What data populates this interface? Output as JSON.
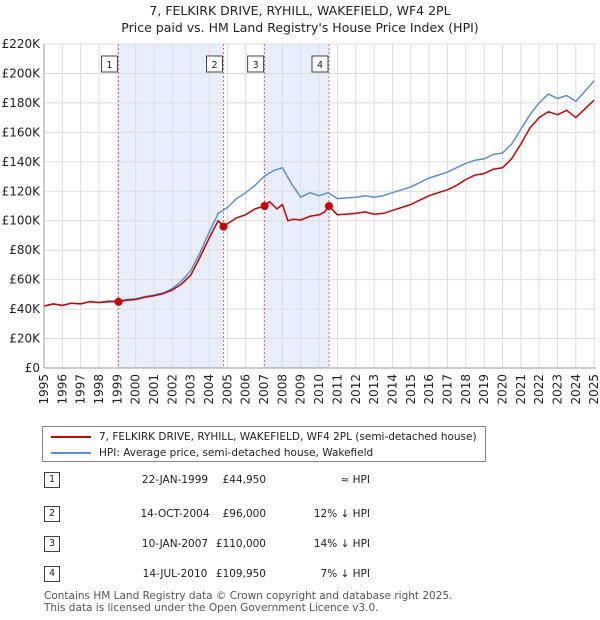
{
  "title": {
    "line1": "7, FELKIRK DRIVE, RYHILL, WAKEFIELD, WF4 2PL",
    "line2": "Price paid vs. HM Land Registry's House Price Index (HPI)"
  },
  "colors": {
    "property": "#cc0000",
    "hpi": "#5b8fd4",
    "shade": "#e8eefb",
    "grid": "#dddddd",
    "vline": "#e06666"
  },
  "legend": {
    "property_label": "7, FELKIRK DRIVE, RYHILL, WAKEFIELD, WF4 2PL (semi-detached house)",
    "hpi_label": "HPI: Average price, semi-detached house, Wakefield"
  },
  "sales": [
    {
      "id": "1",
      "date": "22-JAN-1999",
      "price": "£44,950",
      "hpi_note": "≈ HPI"
    },
    {
      "id": "2",
      "date": "14-OCT-2004",
      "price": "£96,000",
      "hpi_note": "12% ↓ HPI"
    },
    {
      "id": "3",
      "date": "10-JAN-2007",
      "price": "£110,000",
      "hpi_note": "14% ↓ HPI"
    },
    {
      "id": "4",
      "date": "14-JUL-2010",
      "price": "£109,950",
      "hpi_note": "7% ↓ HPI"
    }
  ],
  "footer": {
    "line1": "Contains HM Land Registry data © Crown copyright and database right 2025.",
    "line2": "This data is licensed under the Open Government Licence v3.0."
  },
  "chart_data": {
    "type": "line",
    "title": "Price paid vs. HM Land Registry's House Price Index (HPI)",
    "xlabel": "",
    "ylabel": "",
    "xlim": [
      1995,
      2025.1
    ],
    "ylim": [
      0,
      220000
    ],
    "x_ticks": [
      1995,
      1996,
      1997,
      1998,
      1999,
      2000,
      2001,
      2002,
      2003,
      2004,
      2005,
      2006,
      2007,
      2008,
      2009,
      2010,
      2011,
      2012,
      2013,
      2014,
      2015,
      2016,
      2017,
      2018,
      2019,
      2020,
      2021,
      2022,
      2023,
      2024,
      2025
    ],
    "y_ticks": [
      0,
      20000,
      40000,
      60000,
      80000,
      100000,
      120000,
      140000,
      160000,
      180000,
      200000,
      220000
    ],
    "y_tick_labels": [
      "£0",
      "£20K",
      "£40K",
      "£60K",
      "£80K",
      "£100K",
      "£120K",
      "£140K",
      "£160K",
      "£180K",
      "£200K",
      "£220K"
    ],
    "grid": true,
    "sale_points": [
      {
        "id": "1",
        "x": 1999.06,
        "y": 44950
      },
      {
        "id": "2",
        "x": 2004.79,
        "y": 96000
      },
      {
        "id": "3",
        "x": 2007.03,
        "y": 110000
      },
      {
        "id": "4",
        "x": 2010.54,
        "y": 109950
      }
    ],
    "shaded_ranges": [
      [
        1999.06,
        2004.79
      ],
      [
        2007.03,
        2010.54
      ]
    ],
    "series": [
      {
        "name": "7, FELKIRK DRIVE, RYHILL, WAKEFIELD, WF4 2PL (semi-detached house)",
        "x": [
          1995,
          1995.5,
          1996,
          1996.5,
          1997,
          1997.5,
          1998,
          1998.5,
          1999.06,
          1999.5,
          2000,
          2000.5,
          2001,
          2001.5,
          2002,
          2002.5,
          2003,
          2003.5,
          2004,
          2004.5,
          2004.79,
          2005,
          2005.5,
          2006,
          2006.5,
          2007.03,
          2007.3,
          2007.7,
          2008,
          2008.3,
          2008.6,
          2009,
          2009.5,
          2010,
          2010.3,
          2010.54,
          2011,
          2011.5,
          2012,
          2012.5,
          2013,
          2013.5,
          2014,
          2014.5,
          2015,
          2015.5,
          2016,
          2016.5,
          2017,
          2017.5,
          2018,
          2018.5,
          2019,
          2019.5,
          2020,
          2020.5,
          2021,
          2021.5,
          2022,
          2022.5,
          2023,
          2023.5,
          2024,
          2024.5,
          2025
        ],
        "values": [
          42000,
          43500,
          42500,
          44000,
          43500,
          45000,
          44500,
          45000,
          44950,
          46000,
          46500,
          48000,
          49000,
          50500,
          53000,
          57000,
          63000,
          75000,
          88000,
          100000,
          96000,
          98000,
          102000,
          104000,
          108000,
          110000,
          113000,
          108000,
          111000,
          100000,
          101000,
          100500,
          103000,
          104000,
          106000,
          109950,
          104000,
          104500,
          105000,
          106000,
          104500,
          105000,
          107000,
          109000,
          111000,
          114000,
          117000,
          119000,
          121000,
          124000,
          128000,
          131000,
          132000,
          135000,
          136000,
          142000,
          152000,
          163000,
          170000,
          174000,
          172000,
          175000,
          170000,
          176000,
          182000
        ]
      },
      {
        "name": "HPI: Average price, semi-detached house, Wakefield",
        "x": [
          1995,
          1995.5,
          1996,
          1996.5,
          1997,
          1997.5,
          1998,
          1998.5,
          1999,
          1999.5,
          2000,
          2000.5,
          2001,
          2001.5,
          2002,
          2002.5,
          2003,
          2003.5,
          2004,
          2004.5,
          2005,
          2005.5,
          2006,
          2006.5,
          2007,
          2007.5,
          2008,
          2008.5,
          2009,
          2009.5,
          2010,
          2010.5,
          2011,
          2011.5,
          2012,
          2012.5,
          2013,
          2013.5,
          2014,
          2014.5,
          2015,
          2015.5,
          2016,
          2016.5,
          2017,
          2017.5,
          2018,
          2018.5,
          2019,
          2019.5,
          2020,
          2020.5,
          2021,
          2021.5,
          2022,
          2022.5,
          2023,
          2023.5,
          2024,
          2024.5,
          2025
        ],
        "values": [
          42000,
          43500,
          42500,
          44000,
          43500,
          45000,
          44500,
          45500,
          45500,
          46500,
          47000,
          48500,
          49500,
          51000,
          54000,
          59000,
          66000,
          78000,
          92000,
          105000,
          109000,
          115000,
          119000,
          124000,
          130000,
          134000,
          136000,
          125000,
          116000,
          119000,
          117000,
          119000,
          115000,
          115500,
          116000,
          117000,
          116000,
          117000,
          119000,
          121000,
          123000,
          126000,
          129000,
          131000,
          133000,
          136000,
          139000,
          141000,
          142000,
          145000,
          146000,
          152000,
          162000,
          172000,
          180000,
          186000,
          183000,
          185000,
          181000,
          188000,
          195000
        ]
      }
    ]
  }
}
